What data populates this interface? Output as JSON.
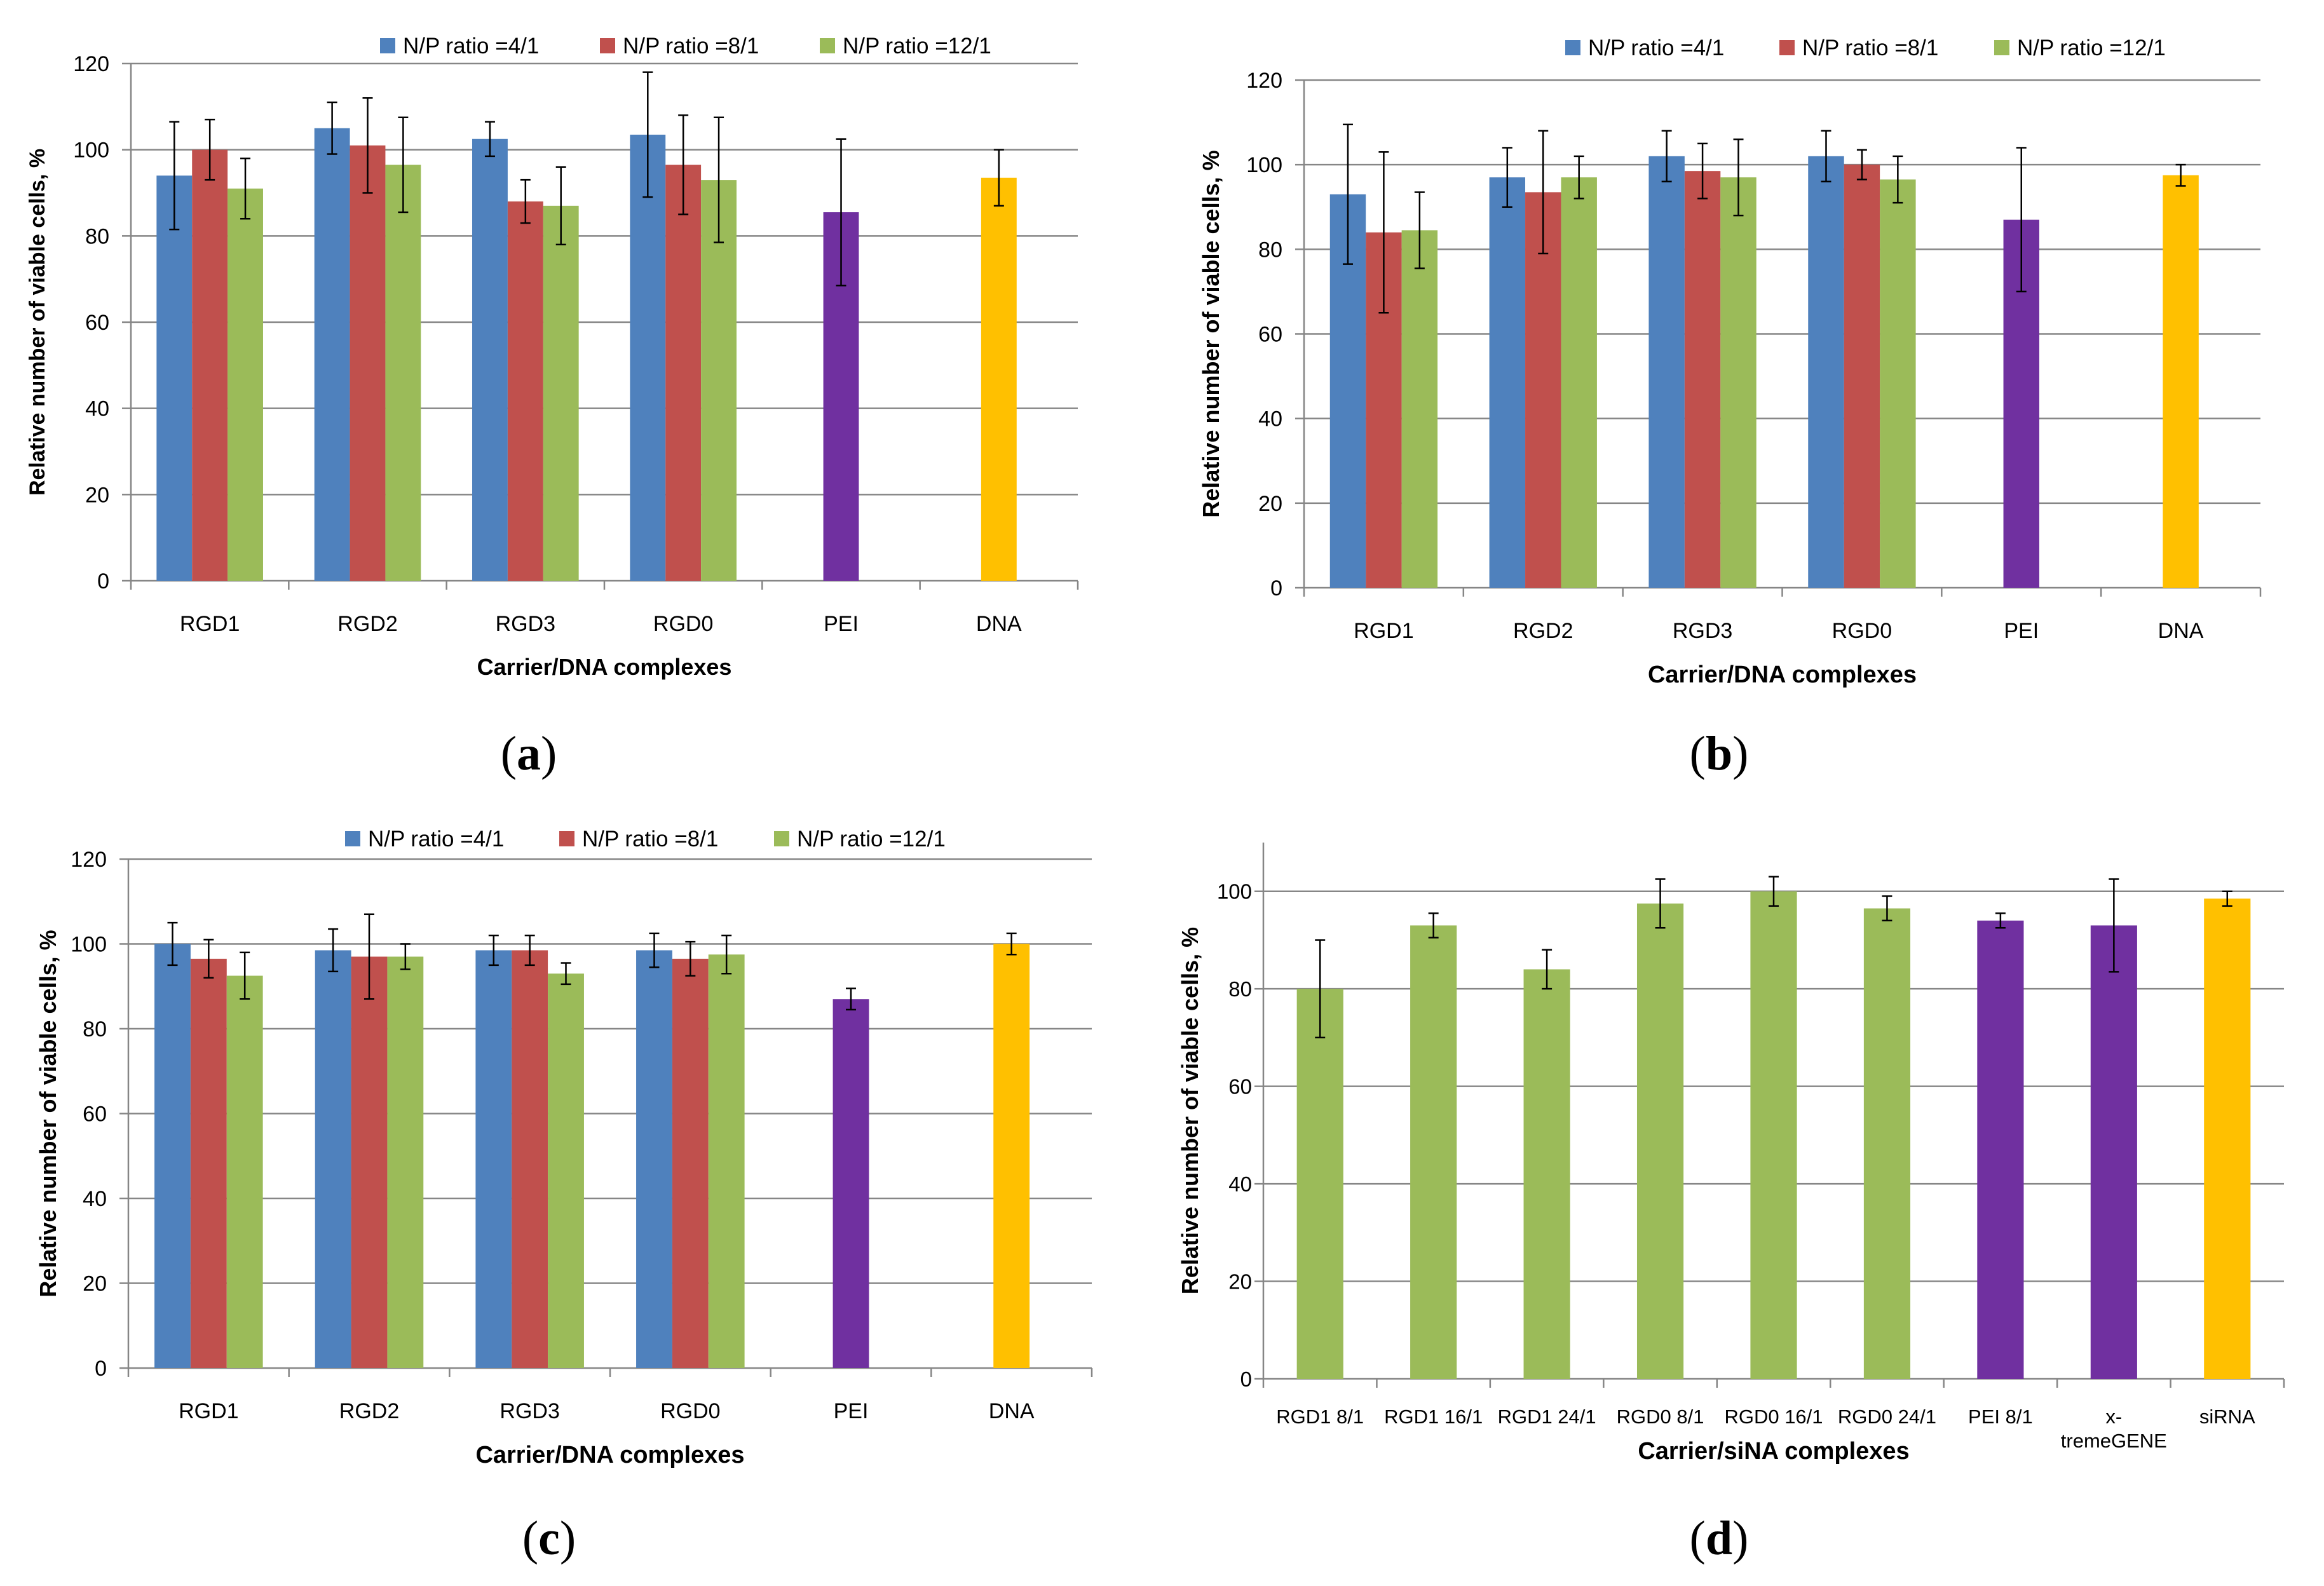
{
  "figure": {
    "captions": [
      {
        "open": "(",
        "letter": "a",
        "close": ")"
      },
      {
        "open": "(",
        "letter": "b",
        "close": ")"
      },
      {
        "open": "(",
        "letter": "c",
        "close": ")"
      },
      {
        "open": "(",
        "letter": "d",
        "close": ")"
      }
    ]
  },
  "colors": {
    "blue": "#4F81BD",
    "red": "#C0504D",
    "green": "#9BBB59",
    "purple": "#7030A0",
    "gold": "#FFC000",
    "grid": "#868686",
    "axis": "#868686",
    "text": "#000000"
  },
  "chart_data": [
    {
      "id": "a",
      "type": "bar",
      "title": "",
      "xlabel": "Carrier/DNA complexes",
      "ylabel": "Relative number of viable cells, %",
      "ylim": [
        0,
        120
      ],
      "yticks": [
        0,
        20,
        40,
        60,
        80,
        100,
        120
      ],
      "grid": true,
      "legend_position": "top",
      "categories": [
        "RGD1",
        "RGD2",
        "RGD3",
        "RGD0",
        "PEI",
        "DNA"
      ],
      "series": [
        {
          "name": "N/P ratio =4/1",
          "color": "blue",
          "values": [
            94,
            105,
            102.5,
            103.5,
            null,
            null
          ],
          "errors": [
            12.5,
            6,
            4,
            14.5,
            null,
            null
          ]
        },
        {
          "name": "N/P ratio =8/1",
          "color": "red",
          "values": [
            100,
            101,
            88,
            96.5,
            null,
            null
          ],
          "errors": [
            7,
            11,
            5,
            11.5,
            null,
            null
          ]
        },
        {
          "name": "N/P ratio =12/1",
          "color": "green",
          "values": [
            91,
            96.5,
            87,
            93,
            null,
            null
          ],
          "errors": [
            7,
            11,
            9,
            14.5,
            null,
            null
          ]
        }
      ],
      "singles": [
        {
          "category": "PEI",
          "color": "purple",
          "value": 85.5,
          "error": 17
        },
        {
          "category": "DNA",
          "color": "gold",
          "value": 93.5,
          "error": 6.5
        }
      ]
    },
    {
      "id": "b",
      "type": "bar",
      "title": "",
      "xlabel": "Carrier/DNA complexes",
      "ylabel": "Relative number of viable cells, %",
      "ylim": [
        0,
        120
      ],
      "yticks": [
        0,
        20,
        40,
        60,
        80,
        100,
        120
      ],
      "grid": true,
      "legend_position": "top",
      "categories": [
        "RGD1",
        "RGD2",
        "RGD3",
        "RGD0",
        "PEI",
        "DNA"
      ],
      "series": [
        {
          "name": "N/P ratio =4/1",
          "color": "blue",
          "values": [
            93,
            97,
            102,
            102,
            null,
            null
          ],
          "errors": [
            16.5,
            7,
            6,
            6,
            null,
            null
          ]
        },
        {
          "name": "N/P ratio =8/1",
          "color": "red",
          "values": [
            84,
            93.5,
            98.5,
            100,
            null,
            null
          ],
          "errors": [
            19,
            14.5,
            6.5,
            3.5,
            null,
            null
          ]
        },
        {
          "name": "N/P ratio =12/1",
          "color": "green",
          "values": [
            84.5,
            97,
            97,
            96.5,
            null,
            null
          ],
          "errors": [
            9,
            5,
            9,
            5.5,
            null,
            null
          ]
        }
      ],
      "singles": [
        {
          "category": "PEI",
          "color": "purple",
          "value": 87,
          "error": 17
        },
        {
          "category": "DNA",
          "color": "gold",
          "value": 97.5,
          "error": 2.5
        }
      ]
    },
    {
      "id": "c",
      "type": "bar",
      "title": "",
      "xlabel": "Carrier/DNA complexes",
      "ylabel": "Relative number of viable cells, %",
      "ylim": [
        0,
        120
      ],
      "yticks": [
        0,
        20,
        40,
        60,
        80,
        100,
        120
      ],
      "grid": true,
      "legend_position": "top",
      "categories": [
        "RGD1",
        "RGD2",
        "RGD3",
        "RGD0",
        "PEI",
        "DNA"
      ],
      "series": [
        {
          "name": "N/P ratio =4/1",
          "color": "blue",
          "values": [
            100,
            98.5,
            98.5,
            98.5,
            null,
            null
          ],
          "errors": [
            5,
            5,
            3.5,
            4,
            null,
            null
          ]
        },
        {
          "name": "N/P ratio =8/1",
          "color": "red",
          "values": [
            96.5,
            97,
            98.5,
            96.5,
            null,
            null
          ],
          "errors": [
            4.5,
            10,
            3.5,
            4,
            null,
            null
          ]
        },
        {
          "name": "N/P ratio =12/1",
          "color": "green",
          "values": [
            92.5,
            97,
            93,
            97.5,
            null,
            null
          ],
          "errors": [
            5.5,
            3,
            2.5,
            4.5,
            null,
            null
          ]
        }
      ],
      "singles": [
        {
          "category": "PEI",
          "color": "purple",
          "value": 87,
          "error": 2.5
        },
        {
          "category": "DNA",
          "color": "gold",
          "value": 100,
          "error": 2.5
        }
      ]
    },
    {
      "id": "d",
      "type": "bar",
      "title": "",
      "xlabel": "Carrier/siNA complexes",
      "ylabel": "Relative number of viable cells, %",
      "ylim": [
        0,
        110
      ],
      "yticks": [
        0,
        20,
        40,
        60,
        80,
        100
      ],
      "grid": true,
      "legend_position": "none",
      "categories": [
        "RGD1 8/1",
        "RGD1 16/1",
        "RGD1 24/1",
        "RGD0 8/1",
        "RGD0 16/1",
        "RGD0 24/1",
        "PEI 8/1",
        "x-\ntremeGENE",
        "siRNA"
      ],
      "values": [
        80,
        93,
        84,
        97.5,
        100,
        96.5,
        94,
        93,
        98.5
      ],
      "errors": [
        10,
        2.5,
        4,
        5,
        3,
        2.5,
        1.5,
        9.5,
        1.5
      ],
      "bar_colors": [
        "green",
        "green",
        "green",
        "green",
        "green",
        "green",
        "purple",
        "purple",
        "gold"
      ]
    }
  ]
}
